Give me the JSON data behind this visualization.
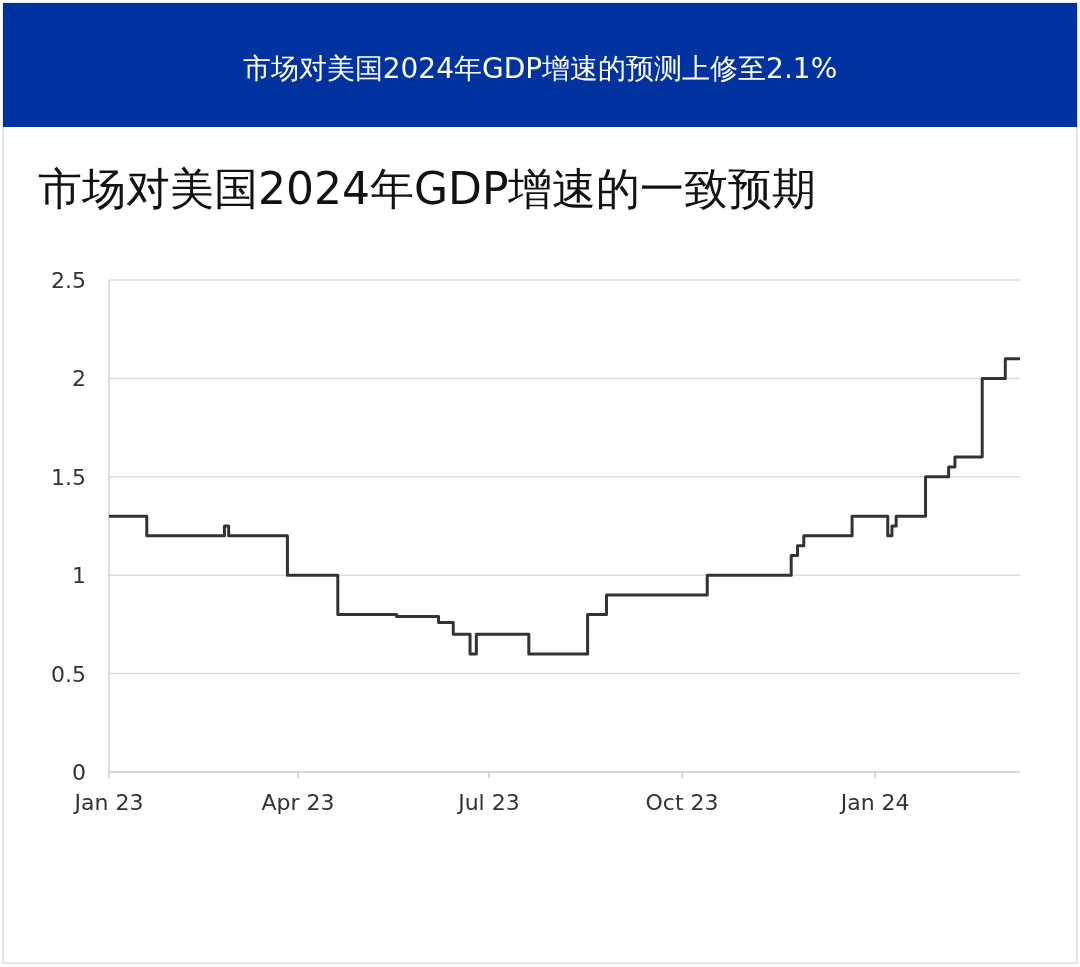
{
  "chart_data": {
    "type": "step",
    "title": "市场对美国2024年GDP增速的预测上修至2.1%",
    "subtitle": "市场对美国2024年GDP增速的一致预期",
    "x": [
      "2023-01-01",
      "2023-01-19",
      "2023-02-25",
      "2023-02-27",
      "2023-03-27",
      "2023-04-20",
      "2023-05-18",
      "2023-06-07",
      "2023-06-14",
      "2023-06-22",
      "2023-06-25",
      "2023-07-20",
      "2023-08-17",
      "2023-08-26",
      "2023-10-13",
      "2023-11-22",
      "2023-11-25",
      "2023-11-28",
      "2023-12-21",
      "2024-01-07",
      "2024-01-09",
      "2024-01-11",
      "2024-01-25",
      "2024-02-05",
      "2024-02-08",
      "2024-02-21",
      "2024-03-03",
      "2024-03-10"
    ],
    "values": [
      1.3,
      1.2,
      1.25,
      1.2,
      1.0,
      0.8,
      0.79,
      0.76,
      0.7,
      0.6,
      0.7,
      0.6,
      0.8,
      0.9,
      1.0,
      1.1,
      1.15,
      1.2,
      1.3,
      1.2,
      1.25,
      1.3,
      1.5,
      1.55,
      1.6,
      2.0,
      2.1,
      2.1
    ],
    "color": "#333333",
    "xlim": [
      "2023-01-01",
      "2024-03-10"
    ],
    "ylim": [
      0,
      2.5
    ],
    "xticks": [
      {
        "value": "2023-01-01",
        "label": "Jan 23"
      },
      {
        "value": "2023-04-01",
        "label": "Apr 23"
      },
      {
        "value": "2023-07-01",
        "label": "Jul 23"
      },
      {
        "value": "2023-10-01",
        "label": "Oct 23"
      },
      {
        "value": "2024-01-01",
        "label": "Jan 24"
      }
    ],
    "yticks": [
      0,
      0.5,
      1,
      1.5,
      2,
      2.5
    ],
    "grid": "y"
  }
}
